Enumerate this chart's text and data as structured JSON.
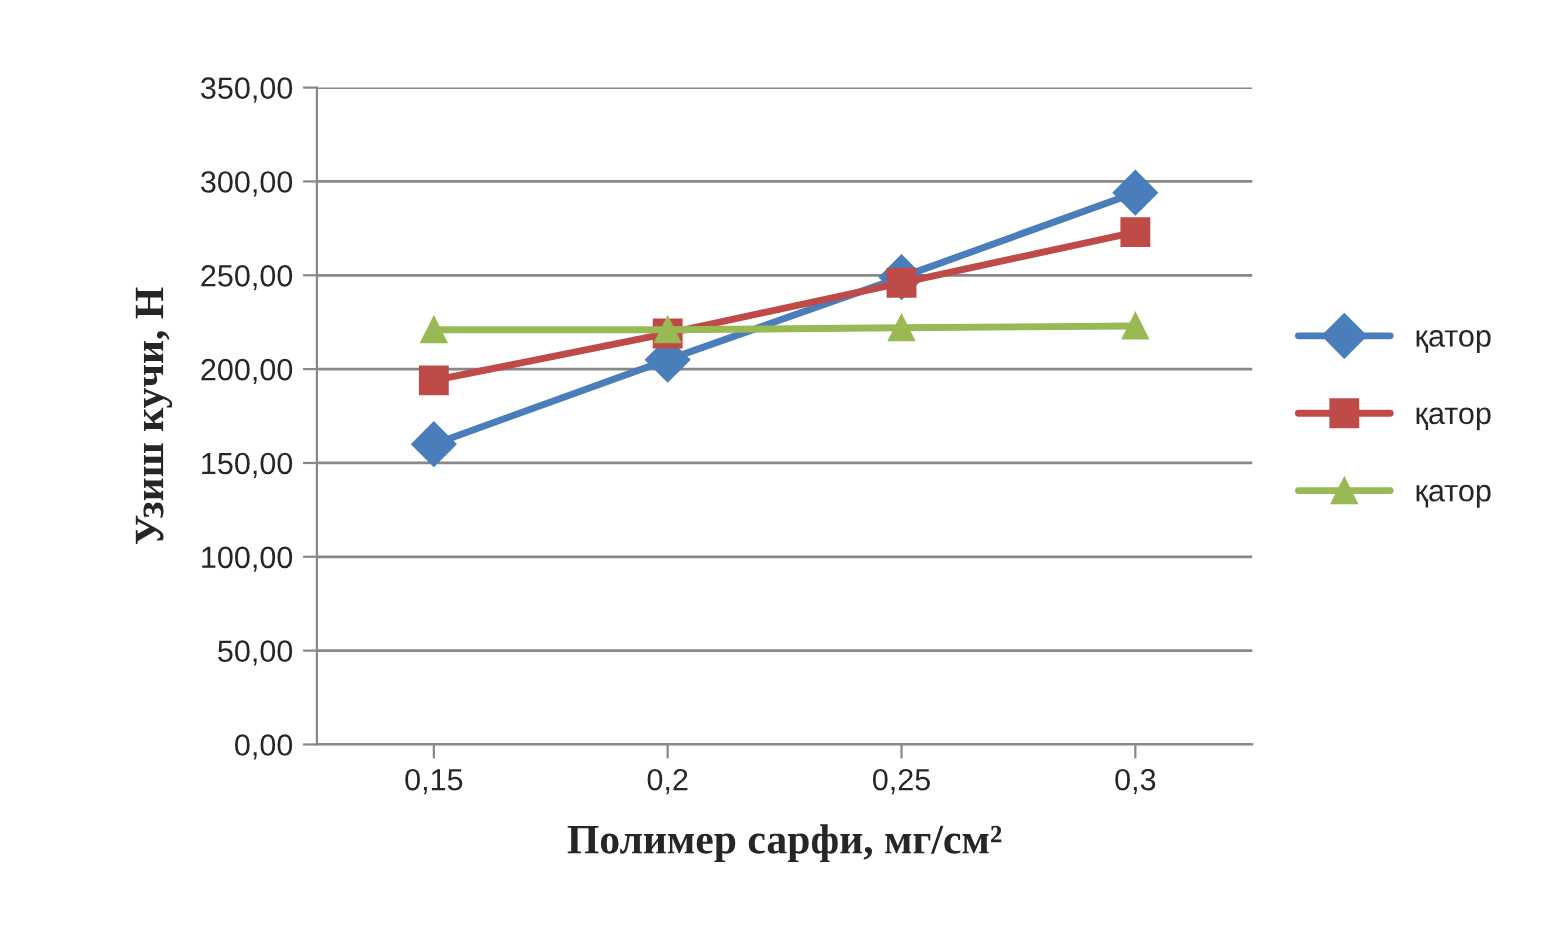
{
  "chart_data": {
    "type": "line",
    "xlabel": "Полимер сарфи, мг/см²",
    "ylabel": "Узиш кучи, Н",
    "categories": [
      "0,15",
      "0,2",
      "0,25",
      "0,3"
    ],
    "series": [
      {
        "name": "қатор",
        "color": "#4a7ebb",
        "marker": "diamond",
        "values": [
          160,
          205,
          249,
          294
        ]
      },
      {
        "name": "қатор",
        "color": "#be4b48",
        "marker": "square",
        "values": [
          194,
          219,
          246,
          273
        ]
      },
      {
        "name": "қатор",
        "color": "#98b954",
        "marker": "triangle",
        "values": [
          221,
          221,
          222,
          223
        ]
      }
    ],
    "ylim": [
      0,
      350
    ],
    "yticks": [
      {
        "value": 0,
        "label": "0,00"
      },
      {
        "value": 50,
        "label": "50,00"
      },
      {
        "value": 100,
        "label": "100,00"
      },
      {
        "value": 150,
        "label": "150,00"
      },
      {
        "value": 200,
        "label": "200,00"
      },
      {
        "value": 250,
        "label": "250,00"
      },
      {
        "value": 300,
        "label": "300,00"
      },
      {
        "value": 350,
        "label": "350,00"
      }
    ],
    "grid": "y",
    "legend": "right",
    "line_style": "solid"
  }
}
